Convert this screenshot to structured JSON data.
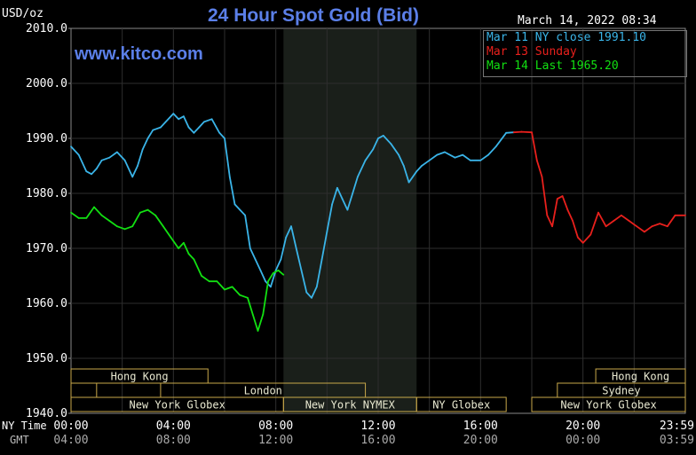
{
  "title": "24 Hour Spot Gold (Bid)",
  "unit_label": "USD/oz",
  "timestamp": "March 14, 2022 08:34",
  "site": "www.kitco.com",
  "legend": [
    {
      "label": "Mar 11 NY close 1991.10",
      "color": "#3ab4e8"
    },
    {
      "label": "Mar 13 Sunday",
      "color": "#e8201c"
    },
    {
      "label": "Mar 14 Last 1965.20",
      "color": "#12e012"
    }
  ],
  "row_labels": {
    "ny_time": "NY Time",
    "gmt": "GMT"
  },
  "sessions": [
    {
      "label": "Hong Kong",
      "start_ny": -0.2,
      "end_ny": 5.35
    },
    {
      "label": "",
      "start_ny": 0.0,
      "end_ny": 1.0
    },
    {
      "label": "London",
      "start_ny": 3.5,
      "end_ny": 11.5
    },
    {
      "label": "New York Globex",
      "start_ny": 0.0,
      "end_ny": 8.3
    },
    {
      "label": "New York NYMEX",
      "start_ny": 8.3,
      "end_ny": 13.5
    },
    {
      "label": "NY Globex",
      "start_ny": 13.5,
      "end_ny": 17.0
    },
    {
      "label": "Hong Kong",
      "start_ny": 20.5,
      "end_ny": 24.0
    },
    {
      "label": "Sydney",
      "start_ny": 19.0,
      "end_ny": 24.0
    },
    {
      "label": "New York Globex",
      "start_ny": 18.0,
      "end_ny": 24.0
    }
  ],
  "chart_data": {
    "type": "line",
    "title": "24 Hour Spot Gold (Bid)",
    "ylabel": "USD/oz",
    "ylim": [
      1940,
      2010
    ],
    "xlim": [
      0,
      24
    ],
    "y_ticks": [
      1940,
      1950,
      1960,
      1970,
      1980,
      1990,
      2000,
      2010
    ],
    "y_tick_labels": [
      "1940.0",
      "1950.0",
      "1960.0",
      "1970.0",
      "1980.0",
      "1990.0",
      "2000.0",
      "2010.0"
    ],
    "x_ticks": [
      0,
      4,
      8,
      12,
      16,
      20,
      23.983
    ],
    "x_tick_labels_ny": [
      "00:00",
      "04:00",
      "08:00",
      "12:00",
      "16:00",
      "20:00",
      "23:59"
    ],
    "x_tick_labels_gmt": [
      "04:00",
      "08:00",
      "12:00",
      "16:00",
      "20:00",
      "00:00",
      "03:59"
    ],
    "shaded_region": [
      8.3,
      13.5
    ],
    "grid": true,
    "legend_position": "top-right",
    "series": [
      {
        "name": "Mar 11 NY close 1991.10",
        "color": "#3ab4e8",
        "x": [
          0.0,
          0.3,
          0.6,
          0.8,
          1.0,
          1.2,
          1.5,
          1.8,
          2.1,
          2.4,
          2.6,
          2.8,
          3.0,
          3.2,
          3.5,
          3.7,
          4.0,
          4.2,
          4.4,
          4.6,
          4.8,
          5.0,
          5.2,
          5.5,
          5.8,
          6.0,
          6.2,
          6.4,
          6.6,
          6.8,
          7.0,
          7.2,
          7.4,
          7.6,
          7.8,
          8.0,
          8.2,
          8.4,
          8.6,
          8.8,
          9.0,
          9.2,
          9.4,
          9.6,
          9.8,
          10.0,
          10.2,
          10.4,
          10.6,
          10.8,
          11.0,
          11.2,
          11.5,
          11.8,
          12.0,
          12.2,
          12.5,
          12.8,
          13.0,
          13.2,
          13.5,
          13.7,
          14.0,
          14.3,
          14.6,
          15.0,
          15.3,
          15.6,
          16.0,
          16.3,
          16.6,
          17.0,
          17.3
        ],
        "values": [
          1988.5,
          1987,
          1984,
          1983.5,
          1984.5,
          1986,
          1986.5,
          1987.5,
          1986,
          1983,
          1985,
          1988,
          1990,
          1991.5,
          1992,
          1993,
          1994.5,
          1993.5,
          1994,
          1992,
          1991,
          1992,
          1993,
          1993.5,
          1991,
          1990,
          1983,
          1978,
          1977,
          1976,
          1970,
          1968,
          1966,
          1964,
          1963,
          1966,
          1968,
          1972,
          1974,
          1970,
          1966,
          1962,
          1961,
          1963,
          1968,
          1973,
          1978,
          1981,
          1979,
          1977,
          1980,
          1983,
          1986,
          1988,
          1990,
          1990.5,
          1989,
          1987,
          1985,
          1982,
          1984,
          1985,
          1986,
          1987,
          1987.5,
          1986.5,
          1987,
          1986,
          1986,
          1987,
          1988.5,
          1991,
          1991.1
        ]
      },
      {
        "name": "Mar 13 Sunday",
        "color": "#e8201c",
        "x": [
          17.3,
          17.6,
          18.0,
          18.2,
          18.4,
          18.6,
          18.8,
          19.0,
          19.2,
          19.4,
          19.6,
          19.8,
          20.0,
          20.3,
          20.6,
          20.9,
          21.2,
          21.5,
          21.8,
          22.1,
          22.4,
          22.7,
          23.0,
          23.3,
          23.6,
          24.0
        ],
        "values": [
          1991.1,
          1991.2,
          1991.1,
          1986,
          1983,
          1976,
          1974,
          1979,
          1979.5,
          1977,
          1975,
          1972,
          1971,
          1972.5,
          1976.5,
          1974,
          1975,
          1976,
          1975,
          1974,
          1973,
          1974,
          1974.5,
          1974,
          1976,
          1976
        ]
      },
      {
        "name": "Mar 14 Last 1965.20",
        "color": "#12e012",
        "x": [
          0.0,
          0.3,
          0.6,
          0.9,
          1.2,
          1.5,
          1.8,
          2.1,
          2.4,
          2.7,
          3.0,
          3.3,
          3.6,
          3.9,
          4.2,
          4.4,
          4.6,
          4.8,
          5.1,
          5.4,
          5.7,
          6.0,
          6.3,
          6.6,
          6.9,
          7.1,
          7.3,
          7.5,
          7.7,
          7.9,
          8.1,
          8.3
        ],
        "values": [
          1976.5,
          1975.5,
          1975.5,
          1977.5,
          1976,
          1975,
          1974,
          1973.5,
          1974,
          1976.5,
          1977,
          1976,
          1974,
          1972,
          1970,
          1971,
          1969,
          1968,
          1965,
          1964,
          1964,
          1962.5,
          1963,
          1961.5,
          1961,
          1958,
          1955,
          1958,
          1964,
          1965.5,
          1966,
          1965.2
        ]
      }
    ]
  }
}
